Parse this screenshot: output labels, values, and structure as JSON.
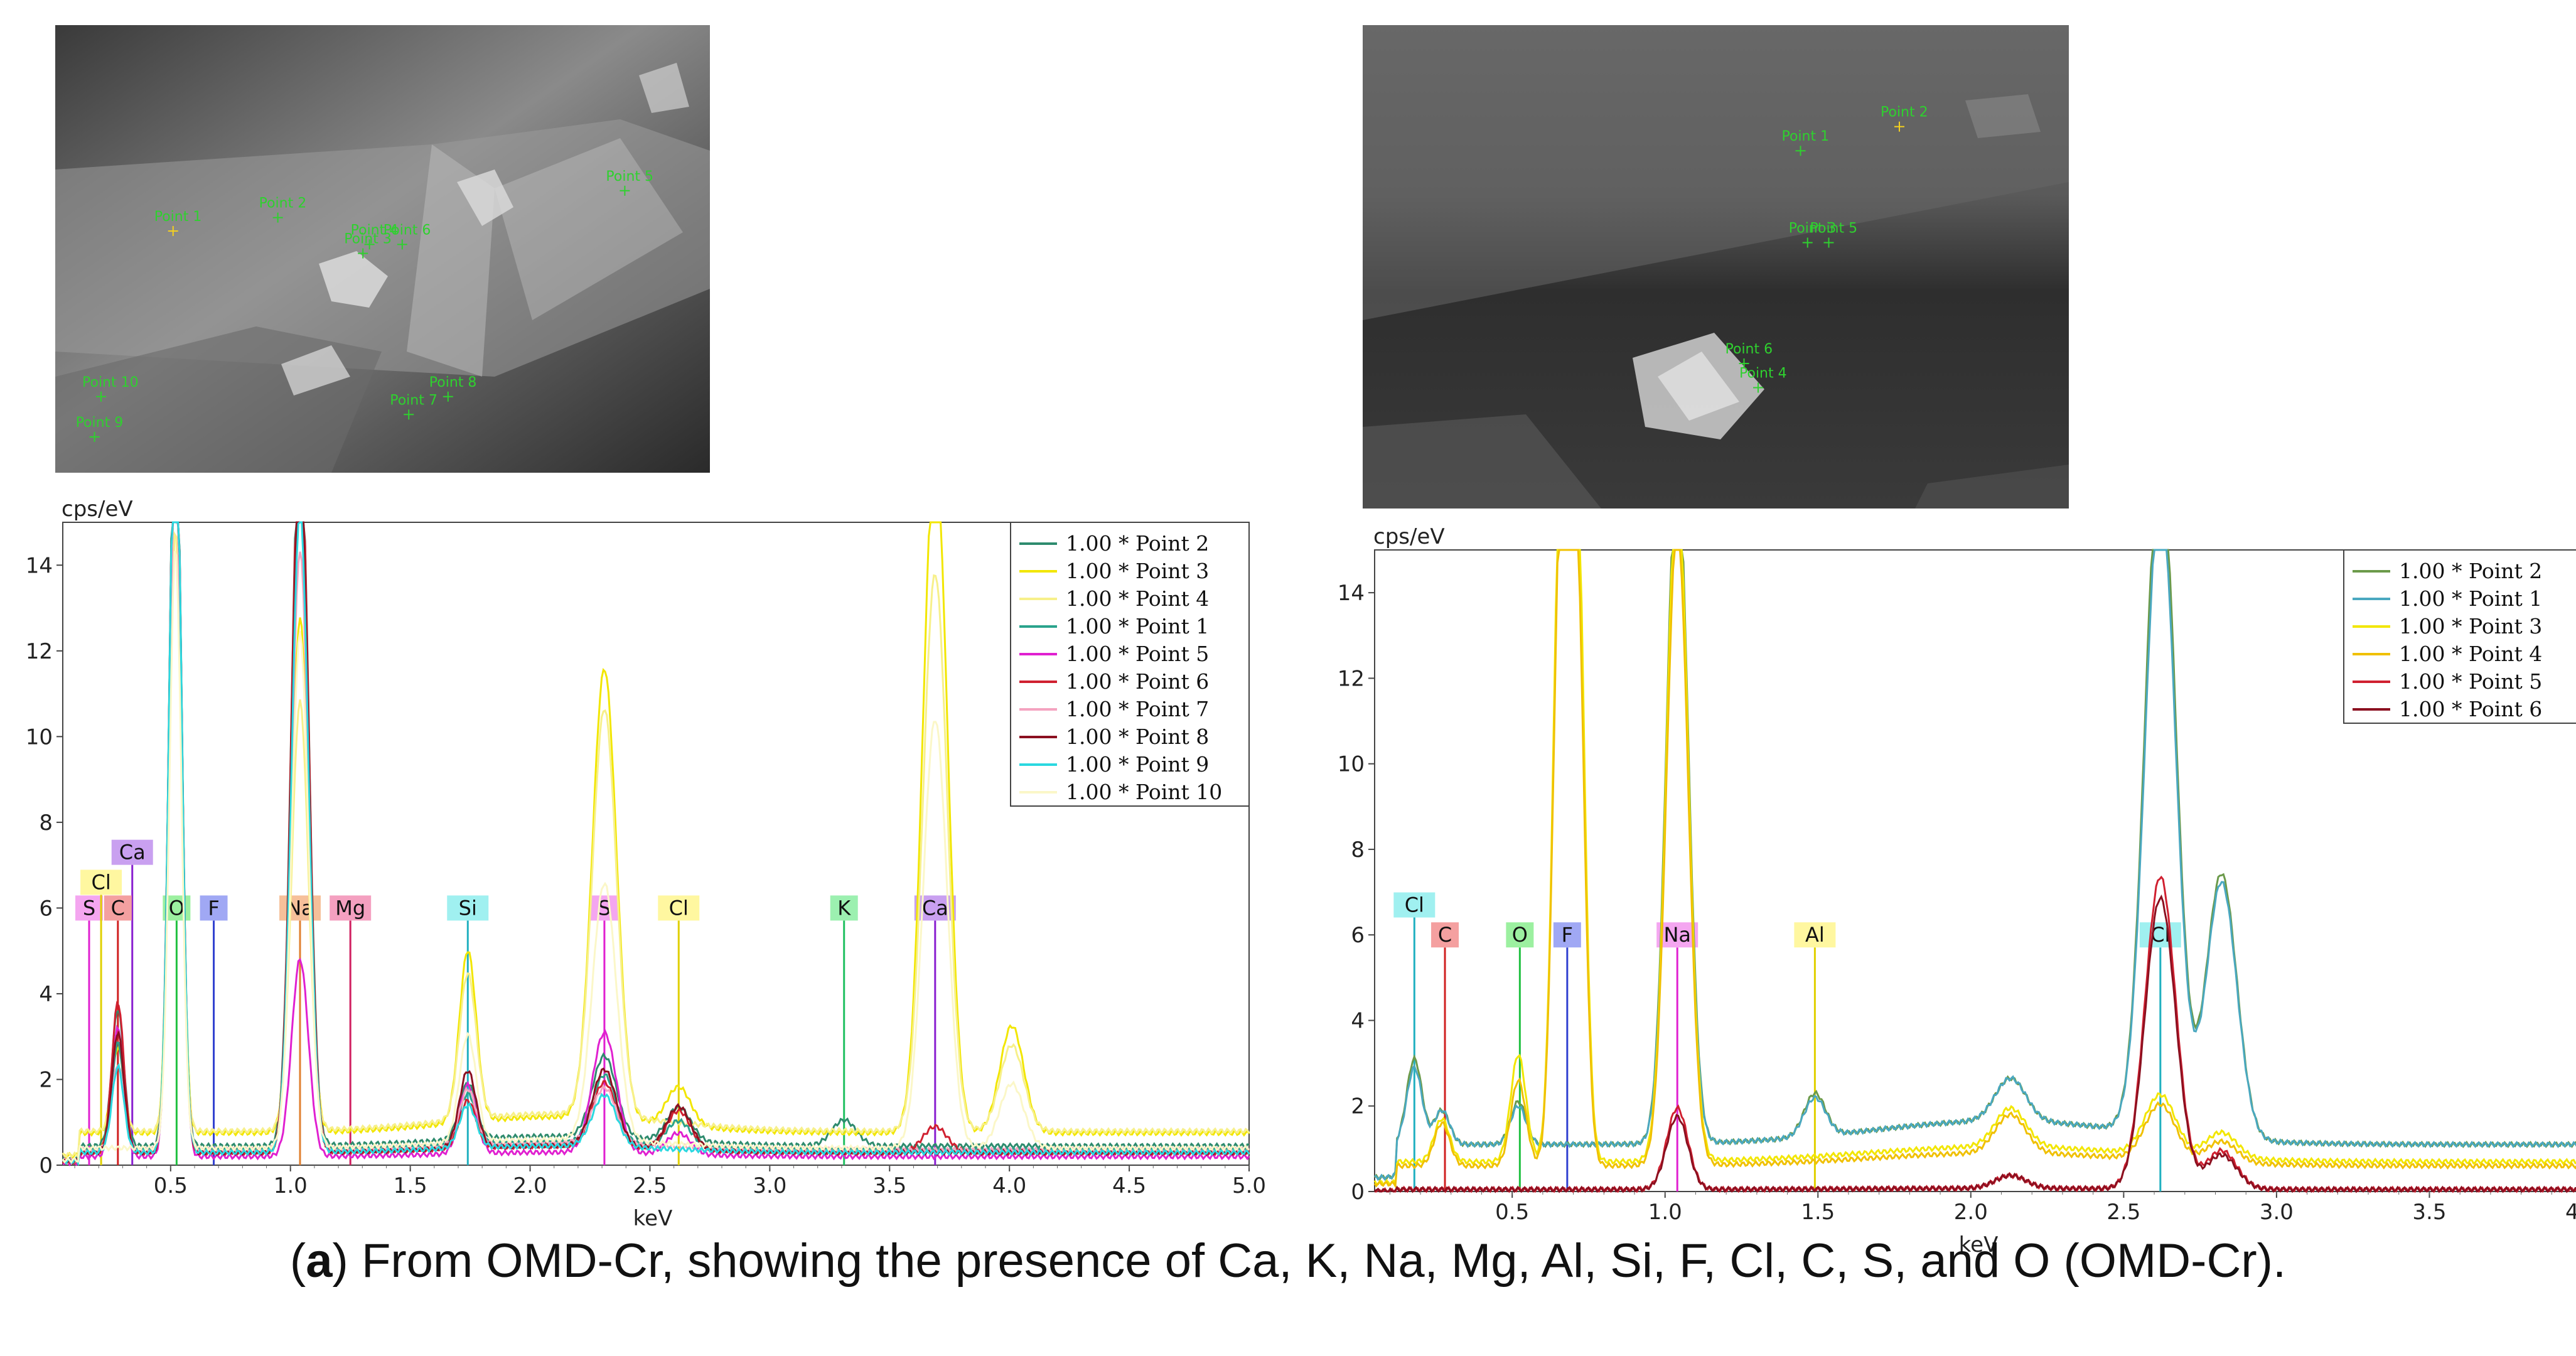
{
  "caption": {
    "prefix": "(",
    "bold": "a",
    "text": ") From OMD-Cr, showing the presence of Ca, K, Na, Mg, Al, Si, F, Cl, C, S, and O (OMD-Cr)."
  },
  "sem_left": {
    "points": [
      "Point 1",
      "Point 2",
      "Point 3",
      "Point 4",
      "Point 5",
      "Point 6",
      "Point 7",
      "Point 8",
      "Point 9",
      "Point 10"
    ]
  },
  "sem_right": {
    "points": [
      "Point 1",
      "Point 2",
      "Point 3",
      "Point 4",
      "Point 5",
      "Point 6"
    ]
  },
  "chart_data": [
    {
      "type": "line",
      "ylabel": "cps/eV",
      "xlabel": "keV",
      "xlim": [
        0.05,
        5.0
      ],
      "ylim": [
        0,
        15
      ],
      "xticks": [
        "0.5",
        "1.0",
        "1.5",
        "2.0",
        "2.5",
        "3.0",
        "3.5",
        "4.0",
        "4.5",
        "5.0"
      ],
      "xtick_values": [
        0.5,
        1.0,
        1.5,
        2.0,
        2.5,
        3.0,
        3.5,
        4.0,
        4.5,
        5.0
      ],
      "yticks": [
        "0",
        "2",
        "4",
        "6",
        "8",
        "10",
        "12",
        "14"
      ],
      "ytick_values": [
        0,
        2,
        4,
        6,
        8,
        10,
        12,
        14
      ],
      "legend_position": "top-right",
      "series": [
        {
          "name": "1.00 * Point 2",
          "color": "#2e8b6e",
          "baseline": 0.45,
          "peaks": [
            [
              0.28,
              3.2
            ],
            [
              0.52,
              18
            ],
            [
              1.04,
              17
            ],
            [
              1.74,
              1.3
            ],
            [
              2.31,
              1.9
            ],
            [
              2.62,
              0.8
            ],
            [
              3.31,
              0.6
            ]
          ]
        },
        {
          "name": "1.00 * Point 3",
          "color": "#f2e600",
          "baseline": 0.75,
          "peaks": [
            [
              0.28,
              2.0
            ],
            [
              0.52,
              16
            ],
            [
              1.04,
              12
            ],
            [
              1.74,
              4.0
            ],
            [
              2.31,
              10.5
            ],
            [
              2.62,
              0.9
            ],
            [
              3.69,
              16
            ],
            [
              4.01,
              2.5
            ]
          ]
        },
        {
          "name": "1.00 * Point 4",
          "color": "#f7f08a",
          "baseline": 0.8,
          "peaks": [
            [
              0.28,
              1.5
            ],
            [
              0.52,
              14
            ],
            [
              1.04,
              10
            ],
            [
              1.74,
              3.4
            ],
            [
              2.31,
              9.5
            ],
            [
              3.69,
              13
            ],
            [
              4.01,
              2.0
            ]
          ]
        },
        {
          "name": "1.00 * Point 1",
          "color": "#2aa38c",
          "baseline": 0.35,
          "peaks": [
            [
              0.28,
              2.5
            ],
            [
              0.52,
              18
            ],
            [
              1.04,
              16
            ],
            [
              1.74,
              1.2
            ],
            [
              2.31,
              1.6
            ],
            [
              2.62,
              0.6
            ]
          ]
        },
        {
          "name": "1.00 * Point 5",
          "color": "#e020d0",
          "baseline": 0.2,
          "peaks": [
            [
              0.28,
              3.0
            ],
            [
              0.52,
              18
            ],
            [
              1.04,
              4.6
            ],
            [
              1.74,
              1.6
            ],
            [
              2.31,
              2.8
            ],
            [
              2.62,
              0.5
            ]
          ]
        },
        {
          "name": "1.00 * Point 6",
          "color": "#d02030",
          "baseline": 0.3,
          "peaks": [
            [
              0.28,
              3.5
            ],
            [
              0.52,
              18
            ],
            [
              1.04,
              17
            ],
            [
              1.74,
              1.1
            ],
            [
              2.31,
              1.5
            ],
            [
              2.62,
              0.9
            ],
            [
              3.69,
              0.6
            ]
          ]
        },
        {
          "name": "1.00 * Point 7",
          "color": "#f5a3c0",
          "baseline": 0.35,
          "peaks": [
            [
              0.28,
              2.0
            ],
            [
              0.52,
              16
            ],
            [
              1.04,
              14
            ],
            [
              1.74,
              1.3
            ],
            [
              2.31,
              1.3
            ]
          ]
        },
        {
          "name": "1.00 * Point 8",
          "color": "#8b1020",
          "baseline": 0.3,
          "peaks": [
            [
              0.28,
              2.8
            ],
            [
              0.52,
              18
            ],
            [
              1.04,
              16
            ],
            [
              1.74,
              1.8
            ],
            [
              2.31,
              1.8
            ],
            [
              2.62,
              1.0
            ]
          ]
        },
        {
          "name": "1.00 * Point 9",
          "color": "#2ad8e0",
          "baseline": 0.3,
          "peaks": [
            [
              0.28,
              2.0
            ],
            [
              0.52,
              18
            ],
            [
              1.04,
              15
            ],
            [
              1.74,
              1.0
            ],
            [
              2.31,
              1.2
            ]
          ]
        },
        {
          "name": "1.00 * Point 10",
          "color": "#fbf7c8",
          "baseline": 0.4,
          "peaks": [
            [
              0.52,
              14
            ],
            [
              1.04,
              12
            ],
            [
              1.74,
              2.5
            ],
            [
              2.31,
              6
            ],
            [
              3.69,
              10
            ],
            [
              4.01,
              1.5
            ]
          ]
        }
      ],
      "element_markers": [
        {
          "label": "S",
          "x": 0.16,
          "h": 6.0,
          "row": 0,
          "bg": "#f4a6f0",
          "line": "#e020d0"
        },
        {
          "label": "Cl",
          "x": 0.21,
          "h": 6.6,
          "row": 1,
          "bg": "#fff7a0",
          "line": "#e0d000"
        },
        {
          "label": "Ca",
          "x": 0.34,
          "h": 7.3,
          "row": 2,
          "bg": "#c9a0f0",
          "line": "#8a20d0"
        },
        {
          "label": "C",
          "x": 0.28,
          "h": 6.0,
          "row": 0,
          "bg": "#f4a0a0",
          "line": "#d02020"
        },
        {
          "label": "O",
          "x": 0.525,
          "h": 6.0,
          "row": 0,
          "bg": "#9cf0a0",
          "line": "#20c040"
        },
        {
          "label": "F",
          "x": 0.68,
          "h": 6.0,
          "row": 0,
          "bg": "#a0a8f4",
          "line": "#3040d0"
        },
        {
          "label": "Na",
          "x": 1.04,
          "h": 6.0,
          "row": 0,
          "bg": "#f6c09a",
          "line": "#e08030"
        },
        {
          "label": "Mg",
          "x": 1.25,
          "h": 6.0,
          "row": 0,
          "bg": "#f4a0c0",
          "line": "#d02060"
        },
        {
          "label": "Si",
          "x": 1.74,
          "h": 6.0,
          "row": 0,
          "bg": "#a0f0f0",
          "line": "#20b0c0"
        },
        {
          "label": "S",
          "x": 2.31,
          "h": 6.0,
          "row": 0,
          "bg": "#f4a6f0",
          "line": "#e020d0"
        },
        {
          "label": "Cl",
          "x": 2.62,
          "h": 6.0,
          "row": 0,
          "bg": "#fff7a0",
          "line": "#e0d000"
        },
        {
          "label": "K",
          "x": 3.31,
          "h": 6.0,
          "row": 0,
          "bg": "#9cf0b0",
          "line": "#20c060"
        },
        {
          "label": "Ca",
          "x": 3.69,
          "h": 6.0,
          "row": 0,
          "bg": "#c9a0f0",
          "line": "#8a20d0"
        }
      ]
    },
    {
      "type": "line",
      "ylabel": "cps/eV",
      "xlabel": "keV",
      "xlim": [
        0.05,
        4.0
      ],
      "ylim": [
        0,
        15
      ],
      "xticks": [
        "0.5",
        "1.0",
        "1.5",
        "2.0",
        "2.5",
        "3.0",
        "3.5",
        "4.0"
      ],
      "xtick_values": [
        0.5,
        1.0,
        1.5,
        2.0,
        2.5,
        3.0,
        3.5,
        4.0
      ],
      "yticks": [
        "0",
        "2",
        "4",
        "6",
        "8",
        "10",
        "12",
        "14"
      ],
      "ytick_values": [
        0,
        2,
        4,
        6,
        8,
        10,
        12,
        14
      ],
      "legend_position": "top-right",
      "series": [
        {
          "name": "1.00 * Point 2",
          "color": "#6b9a4a",
          "baseline": 1.1,
          "peaks": [
            [
              0.18,
              2.0
            ],
            [
              0.27,
              0.8
            ],
            [
              0.52,
              1.0
            ],
            [
              1.04,
              16
            ],
            [
              1.49,
              1.0
            ],
            [
              2.13,
              1.0
            ],
            [
              2.62,
              16
            ],
            [
              2.82,
              6.2
            ]
          ]
        },
        {
          "name": "1.00 * Point 1",
          "color": "#4aa8c0",
          "baseline": 1.1,
          "peaks": [
            [
              0.18,
              1.8
            ],
            [
              0.27,
              0.8
            ],
            [
              0.52,
              0.9
            ],
            [
              1.04,
              15
            ],
            [
              1.49,
              0.9
            ],
            [
              2.13,
              1.0
            ],
            [
              2.62,
              15
            ],
            [
              2.82,
              6.0
            ]
          ]
        },
        {
          "name": "1.00 * Point 3",
          "color": "#f2e600",
          "baseline": 0.7,
          "peaks": [
            [
              0.27,
              1.0
            ],
            [
              0.52,
              2.5
            ],
            [
              0.66,
              16
            ],
            [
              0.71,
              16
            ],
            [
              1.04,
              16
            ],
            [
              2.13,
              0.9
            ],
            [
              2.62,
              1.4
            ],
            [
              2.82,
              0.6
            ]
          ]
        },
        {
          "name": "1.00 * Point 4",
          "color": "#f0c000",
          "baseline": 0.6,
          "peaks": [
            [
              0.27,
              1.0
            ],
            [
              0.52,
              2.0
            ],
            [
              0.66,
              15
            ],
            [
              0.71,
              14
            ],
            [
              1.04,
              15
            ],
            [
              2.13,
              0.9
            ],
            [
              2.62,
              1.3
            ],
            [
              2.82,
              0.5
            ]
          ]
        },
        {
          "name": "1.00 * Point 5",
          "color": "#d02030",
          "baseline": 0.05,
          "peaks": [
            [
              1.04,
              1.9
            ],
            [
              2.13,
              0.3
            ],
            [
              2.62,
              7.3
            ],
            [
              2.82,
              0.9
            ]
          ]
        },
        {
          "name": "1.00 * Point 6",
          "color": "#8b1020",
          "baseline": 0.05,
          "peaks": [
            [
              1.04,
              1.7
            ],
            [
              2.13,
              0.3
            ],
            [
              2.62,
              6.8
            ],
            [
              2.82,
              0.8
            ]
          ]
        }
      ],
      "element_markers": [
        {
          "label": "Cl",
          "x": 0.18,
          "h": 6.7,
          "row": 1,
          "bg": "#a0f0f0",
          "line": "#20b0c0"
        },
        {
          "label": "C",
          "x": 0.28,
          "h": 6.0,
          "row": 0,
          "bg": "#f4a0a0",
          "line": "#d02020"
        },
        {
          "label": "O",
          "x": 0.525,
          "h": 6.0,
          "row": 0,
          "bg": "#9cf0a0",
          "line": "#20c040"
        },
        {
          "label": "F",
          "x": 0.68,
          "h": 6.0,
          "row": 0,
          "bg": "#a0a8f4",
          "line": "#3040d0"
        },
        {
          "label": "Na",
          "x": 1.04,
          "h": 6.0,
          "row": 0,
          "bg": "#f4a6f0",
          "line": "#e020d0"
        },
        {
          "label": "Al",
          "x": 1.49,
          "h": 6.0,
          "row": 0,
          "bg": "#fff7a0",
          "line": "#e0d000"
        },
        {
          "label": "Cl",
          "x": 2.62,
          "h": 6.0,
          "row": 0,
          "bg": "#a0f0f0",
          "line": "#20b0c0"
        }
      ]
    }
  ]
}
